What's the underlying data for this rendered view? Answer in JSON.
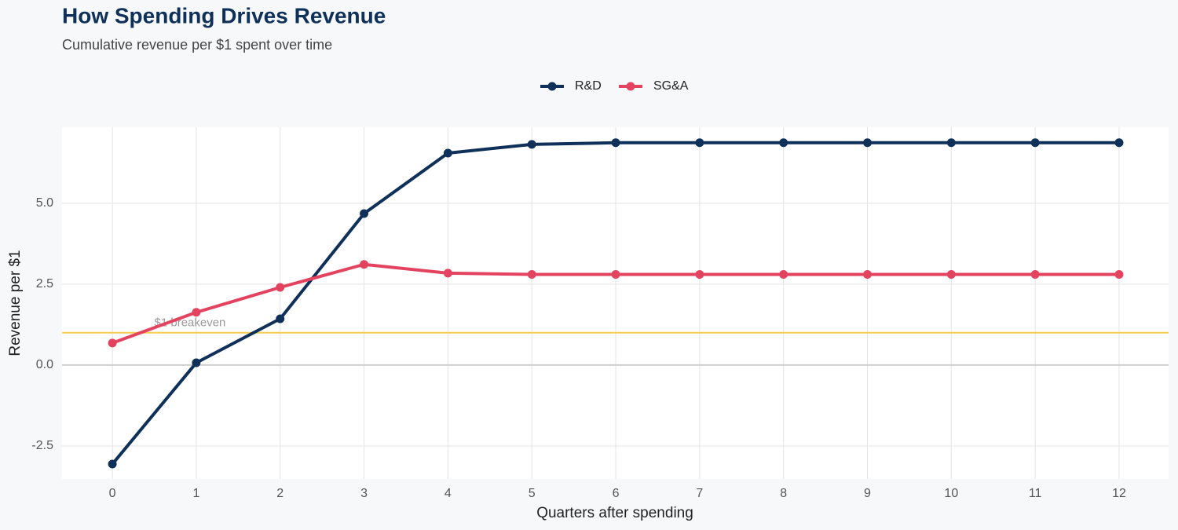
{
  "chart_data": {
    "type": "line",
    "title": "How Spending Drives Revenue",
    "subtitle": "Cumulative revenue per $1 spent over time",
    "x_label": "Quarters after spending",
    "y_label": "Revenue per $1",
    "x": [
      0,
      1,
      2,
      3,
      4,
      5,
      6,
      7,
      8,
      9,
      10,
      11,
      12
    ],
    "series": [
      {
        "name": "R&D",
        "color": "#0e3059",
        "values": [
          -3.06,
          0.07,
          1.43,
          4.68,
          6.55,
          6.82,
          6.87,
          6.87,
          6.87,
          6.87,
          6.87,
          6.87,
          6.87
        ]
      },
      {
        "name": "SG&A",
        "color": "#e4435f",
        "values": [
          0.68,
          1.63,
          2.4,
          3.11,
          2.84,
          2.8,
          2.8,
          2.8,
          2.8,
          2.8,
          2.8,
          2.8,
          2.8
        ]
      }
    ],
    "xlim": [
      -0.6,
      12.59
    ],
    "xticks": [
      0,
      1,
      2,
      3,
      4,
      5,
      6,
      7,
      8,
      9,
      10,
      11,
      12
    ],
    "ylim": [
      -3.52,
      7.35
    ],
    "yticks": [
      -2.5,
      {
        "value": 0,
        "label": "0.0"
      },
      2.5,
      {
        "value": 5,
        "label": "5.0"
      }
    ],
    "reference_line": {
      "value": 1,
      "label": "$1 breakeven",
      "color": "#f5cd4f"
    },
    "grid": true,
    "legend": "top"
  }
}
